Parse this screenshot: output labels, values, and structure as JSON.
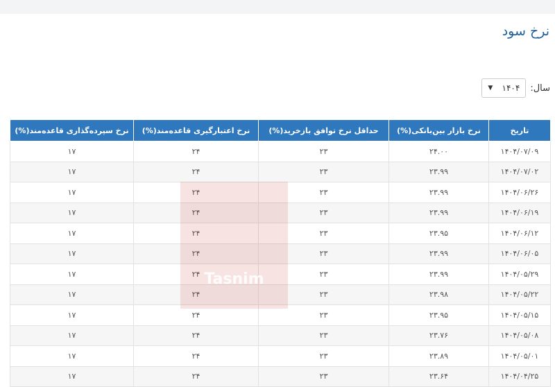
{
  "page": {
    "title": "نرخ سود"
  },
  "filter": {
    "label": "سال:",
    "selected": "۱۴۰۴"
  },
  "table": {
    "headers": [
      "تاریخ",
      "نرخ بازار بین‌بانکی(%)",
      "حداقل نرخ توافق بازخرید(%)",
      "نرخ اعتبارگیری قاعده‌مند(%)",
      "نرخ سپرده‌گذاری قاعده‌مند(%)"
    ],
    "rows": [
      [
        "۱۴۰۴/۰۷/۰۹",
        "۲۴.۰۰",
        "۲۳",
        "۲۴",
        "۱۷"
      ],
      [
        "۱۴۰۴/۰۷/۰۲",
        "۲۳.۹۹",
        "۲۳",
        "۲۴",
        "۱۷"
      ],
      [
        "۱۴۰۴/۰۶/۲۶",
        "۲۳.۹۹",
        "۲۳",
        "۲۴",
        "۱۷"
      ],
      [
        "۱۴۰۴/۰۶/۱۹",
        "۲۳.۹۹",
        "۲۳",
        "۲۴",
        "۱۷"
      ],
      [
        "۱۴۰۴/۰۶/۱۲",
        "۲۳.۹۵",
        "۲۳",
        "۲۴",
        "۱۷"
      ],
      [
        "۱۴۰۴/۰۶/۰۵",
        "۲۳.۹۹",
        "۲۳",
        "۲۴",
        "۱۷"
      ],
      [
        "۱۴۰۴/۰۵/۲۹",
        "۲۳.۹۹",
        "۲۳",
        "۲۴",
        "۱۷"
      ],
      [
        "۱۴۰۴/۰۵/۲۲",
        "۲۳.۹۸",
        "۲۳",
        "۲۴",
        "۱۷"
      ],
      [
        "۱۴۰۴/۰۵/۱۵",
        "۲۳.۹۵",
        "۲۳",
        "۲۴",
        "۱۷"
      ],
      [
        "۱۴۰۴/۰۵/۰۸",
        "۲۳.۷۶",
        "۲۳",
        "۲۴",
        "۱۷"
      ],
      [
        "۱۴۰۴/۰۵/۰۱",
        "۲۳.۸۹",
        "۲۳",
        "۲۴",
        "۱۷"
      ],
      [
        "۱۴۰۴/۰۴/۲۵",
        "۲۳.۶۴",
        "۲۳",
        "۲۴",
        "۱۷"
      ]
    ]
  },
  "watermark": {
    "text": "Tasnim"
  }
}
